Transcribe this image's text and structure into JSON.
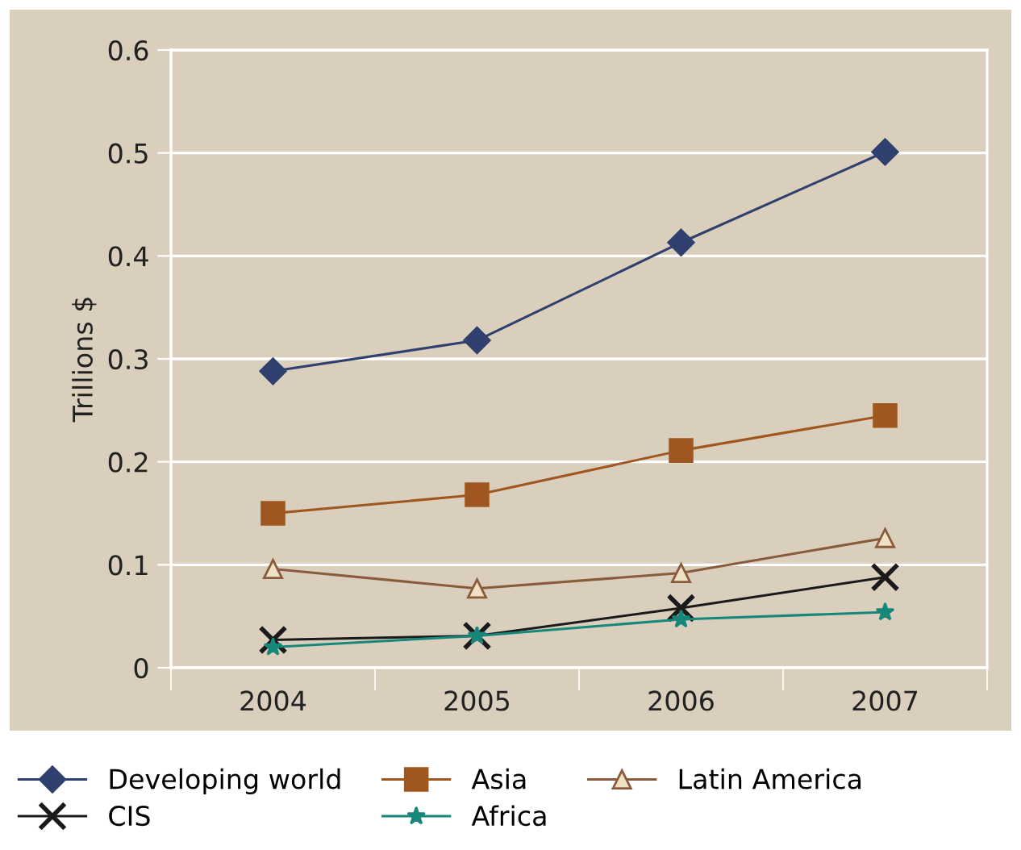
{
  "chart_data": {
    "type": "line",
    "ylabel": "Trillions $",
    "categories": [
      "2004",
      "2005",
      "2006",
      "2007"
    ],
    "series": [
      {
        "name": "Developing world",
        "color": "#2f3f6e",
        "marker": "diamond",
        "values": [
          0.288,
          0.318,
          0.413,
          0.501
        ]
      },
      {
        "name": "Asia",
        "color": "#a0561f",
        "marker": "square",
        "values": [
          0.15,
          0.168,
          0.211,
          0.245
        ]
      },
      {
        "name": "Latin America",
        "color": "#8a5a3c",
        "marker": "triangle",
        "values": [
          0.096,
          0.077,
          0.092,
          0.126
        ]
      },
      {
        "name": "CIS",
        "color": "#1a1a1a",
        "marker": "cross",
        "values": [
          0.027,
          0.031,
          0.058,
          0.088
        ]
      },
      {
        "name": "Africa",
        "color": "#16877a",
        "marker": "star",
        "values": [
          0.02,
          0.031,
          0.047,
          0.054
        ]
      }
    ],
    "ylim": [
      0,
      0.6
    ],
    "yticks": [
      {
        "value": 0,
        "label": "0"
      },
      0.1,
      0.2,
      0.3,
      0.4,
      0.5,
      0.6
    ],
    "grid": "y",
    "legend": "bottom",
    "line_style": "solid"
  }
}
